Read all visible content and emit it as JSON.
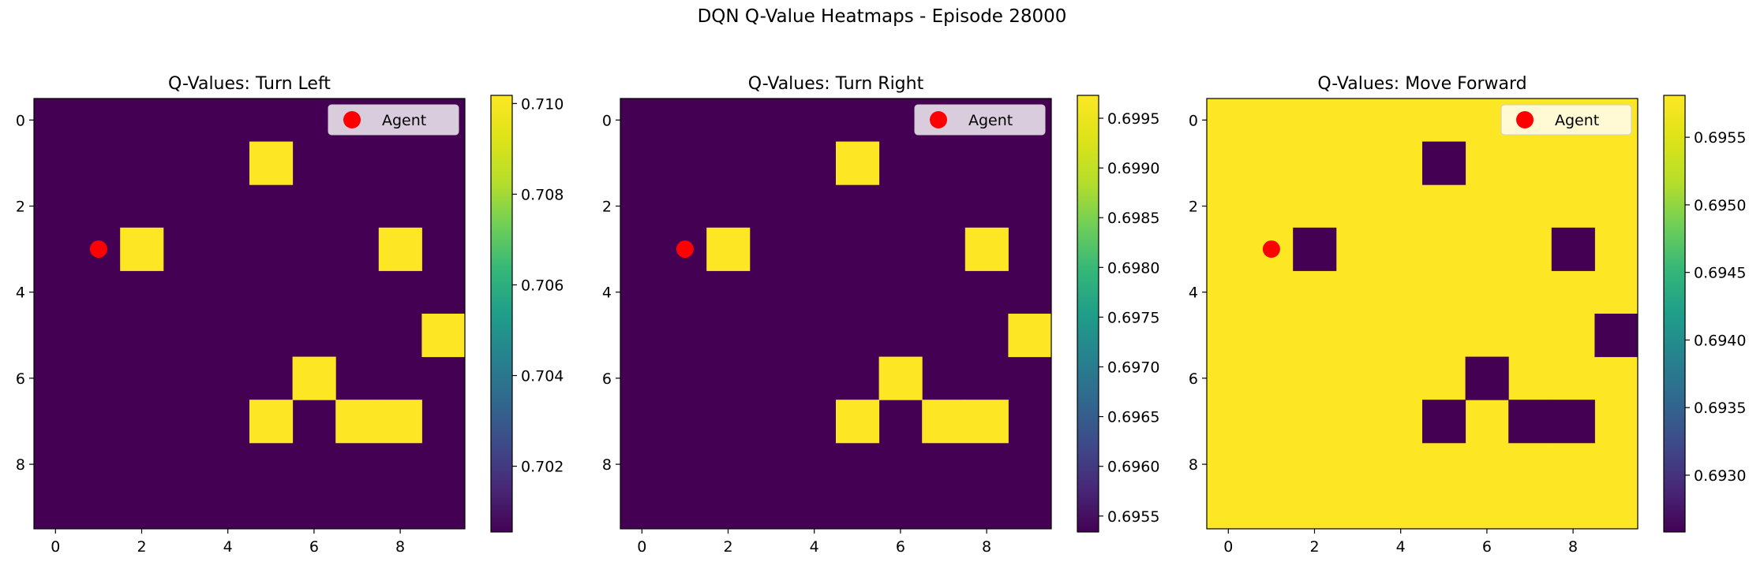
{
  "figure": {
    "title": "DQN Q-Value Heatmaps - Episode 28000"
  },
  "chart_data": [
    {
      "type": "heatmap",
      "title": "Q-Values: Turn Left",
      "grid_size": 10,
      "low_value": 0.70055,
      "high_value": 0.71018,
      "highlighted_cells": [
        [
          1,
          5
        ],
        [
          3,
          2
        ],
        [
          3,
          8
        ],
        [
          5,
          9
        ],
        [
          6,
          6
        ],
        [
          7,
          5
        ],
        [
          7,
          7
        ],
        [
          7,
          8
        ]
      ],
      "agent": {
        "row": 3,
        "col": 1,
        "label": "Agent",
        "color": "#ff0000"
      },
      "x_ticks": [
        "0",
        "2",
        "4",
        "6",
        "8"
      ],
      "y_ticks": [
        "0",
        "2",
        "4",
        "6",
        "8"
      ],
      "colorbar": {
        "min": 0.70055,
        "max": 0.71018,
        "ticks": [
          0.702,
          0.704,
          0.706,
          0.708,
          0.71
        ],
        "tick_labels": [
          "0.702",
          "0.704",
          "0.706",
          "0.708",
          "0.710"
        ]
      }
    },
    {
      "type": "heatmap",
      "title": "Q-Values: Turn Right",
      "grid_size": 10,
      "low_value": 0.69534,
      "high_value": 0.69973,
      "highlighted_cells": [
        [
          1,
          5
        ],
        [
          3,
          2
        ],
        [
          3,
          8
        ],
        [
          5,
          9
        ],
        [
          6,
          6
        ],
        [
          7,
          5
        ],
        [
          7,
          7
        ],
        [
          7,
          8
        ]
      ],
      "agent": {
        "row": 3,
        "col": 1,
        "label": "Agent",
        "color": "#ff0000"
      },
      "x_ticks": [
        "0",
        "2",
        "4",
        "6",
        "8"
      ],
      "y_ticks": [
        "0",
        "2",
        "4",
        "6",
        "8"
      ],
      "colorbar": {
        "min": 0.69534,
        "max": 0.69973,
        "ticks": [
          0.6955,
          0.696,
          0.6965,
          0.697,
          0.6975,
          0.698,
          0.6985,
          0.699,
          0.6995
        ],
        "tick_labels": [
          "0.6955",
          "0.6960",
          "0.6965",
          "0.6970",
          "0.6975",
          "0.6980",
          "0.6985",
          "0.6990",
          "0.6995"
        ]
      }
    },
    {
      "type": "heatmap",
      "title": "Q-Values: Move Forward",
      "grid_size": 10,
      "low_value": 0.69258,
      "high_value": 0.69581,
      "highlighted_cells": [
        [
          1,
          5
        ],
        [
          3,
          2
        ],
        [
          3,
          8
        ],
        [
          5,
          9
        ],
        [
          6,
          6
        ],
        [
          7,
          5
        ],
        [
          7,
          7
        ],
        [
          7,
          8
        ]
      ],
      "highlight_is_low": true,
      "agent": {
        "row": 3,
        "col": 1,
        "label": "Agent",
        "color": "#ff0000"
      },
      "x_ticks": [
        "0",
        "2",
        "4",
        "6",
        "8"
      ],
      "y_ticks": [
        "0",
        "2",
        "4",
        "6",
        "8"
      ],
      "colorbar": {
        "min": 0.69258,
        "max": 0.69581,
        "ticks": [
          0.693,
          0.6935,
          0.694,
          0.6945,
          0.695,
          0.6955
        ],
        "tick_labels": [
          "0.6930",
          "0.6935",
          "0.6940",
          "0.6945",
          "0.6950",
          "0.6955"
        ]
      }
    }
  ],
  "colors": {
    "viridis_low": "#440154",
    "viridis_high": "#fde725"
  }
}
